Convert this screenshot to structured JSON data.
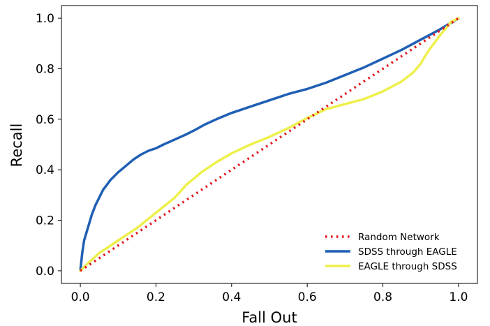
{
  "chart_data": {
    "type": "line",
    "title": "",
    "xlabel": "Fall Out",
    "ylabel": "Recall",
    "xlim": [
      -0.05,
      1.05
    ],
    "ylim": [
      -0.05,
      1.05
    ],
    "xticks": [
      0.0,
      0.2,
      0.4,
      0.6,
      0.8,
      1.0
    ],
    "yticks": [
      0.0,
      0.2,
      0.4,
      0.6,
      0.8,
      1.0
    ],
    "tick_labels_x": [
      "0.0",
      "0.2",
      "0.4",
      "0.6",
      "0.8",
      "1.0"
    ],
    "tick_labels_y": [
      "0.0",
      "0.2",
      "0.4",
      "0.6",
      "0.8",
      "1.0"
    ],
    "grid": false,
    "legend_position": "lower-right",
    "series": [
      {
        "name": "Random Network",
        "color": "#e3161d",
        "style": "dotted",
        "x": [
          0.0,
          1.0
        ],
        "y": [
          0.0,
          1.0
        ]
      },
      {
        "name": "SDSS through EAGLE",
        "color": "#1f5fb4",
        "style": "solid",
        "x": [
          0.0,
          0.005,
          0.01,
          0.02,
          0.03,
          0.04,
          0.05,
          0.06,
          0.07,
          0.08,
          0.09,
          0.1,
          0.12,
          0.14,
          0.16,
          0.18,
          0.2,
          0.22,
          0.25,
          0.28,
          0.3,
          0.33,
          0.36,
          0.4,
          0.45,
          0.5,
          0.55,
          0.6,
          0.65,
          0.7,
          0.75,
          0.8,
          0.85,
          0.9,
          0.95,
          1.0
        ],
        "y": [
          0.0,
          0.07,
          0.12,
          0.17,
          0.22,
          0.26,
          0.29,
          0.32,
          0.34,
          0.36,
          0.375,
          0.39,
          0.415,
          0.44,
          0.46,
          0.475,
          0.485,
          0.5,
          0.52,
          0.54,
          0.555,
          0.58,
          0.6,
          0.625,
          0.65,
          0.675,
          0.7,
          0.72,
          0.745,
          0.775,
          0.805,
          0.84,
          0.875,
          0.915,
          0.955,
          1.0
        ]
      },
      {
        "name": "EAGLE through SDSS",
        "color": "#eef04c",
        "style": "solid",
        "x": [
          0.0,
          0.02,
          0.05,
          0.1,
          0.15,
          0.2,
          0.25,
          0.28,
          0.32,
          0.36,
          0.4,
          0.45,
          0.5,
          0.55,
          0.6,
          0.65,
          0.7,
          0.75,
          0.8,
          0.85,
          0.88,
          0.9,
          0.92,
          0.95,
          0.98,
          1.0
        ],
        "y": [
          0.0,
          0.03,
          0.07,
          0.12,
          0.17,
          0.23,
          0.29,
          0.34,
          0.39,
          0.43,
          0.465,
          0.5,
          0.53,
          0.565,
          0.605,
          0.64,
          0.66,
          0.68,
          0.71,
          0.75,
          0.785,
          0.82,
          0.87,
          0.93,
          0.985,
          1.0
        ]
      }
    ]
  }
}
